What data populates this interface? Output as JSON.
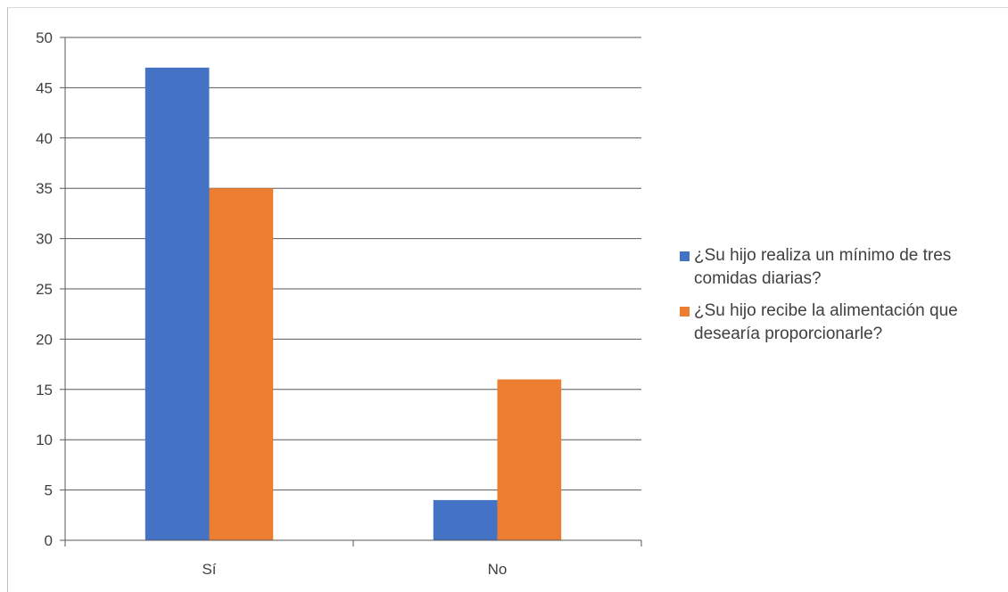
{
  "chart_data": {
    "type": "bar",
    "categories": [
      "Sí",
      "No"
    ],
    "series": [
      {
        "name": "¿Su hijo realiza un mínimo de tres comidas diarias?",
        "values": [
          47,
          4
        ],
        "color": "#4472c4"
      },
      {
        "name": "¿Su hijo recibe la alimentación que desearía proporcionarle?",
        "values": [
          35,
          16
        ],
        "color": "#ed7d31"
      }
    ],
    "ylim": [
      0,
      50
    ],
    "yticks": [
      0,
      5,
      10,
      15,
      20,
      25,
      30,
      35,
      40,
      45,
      50
    ],
    "grid": true,
    "legend": "right"
  }
}
